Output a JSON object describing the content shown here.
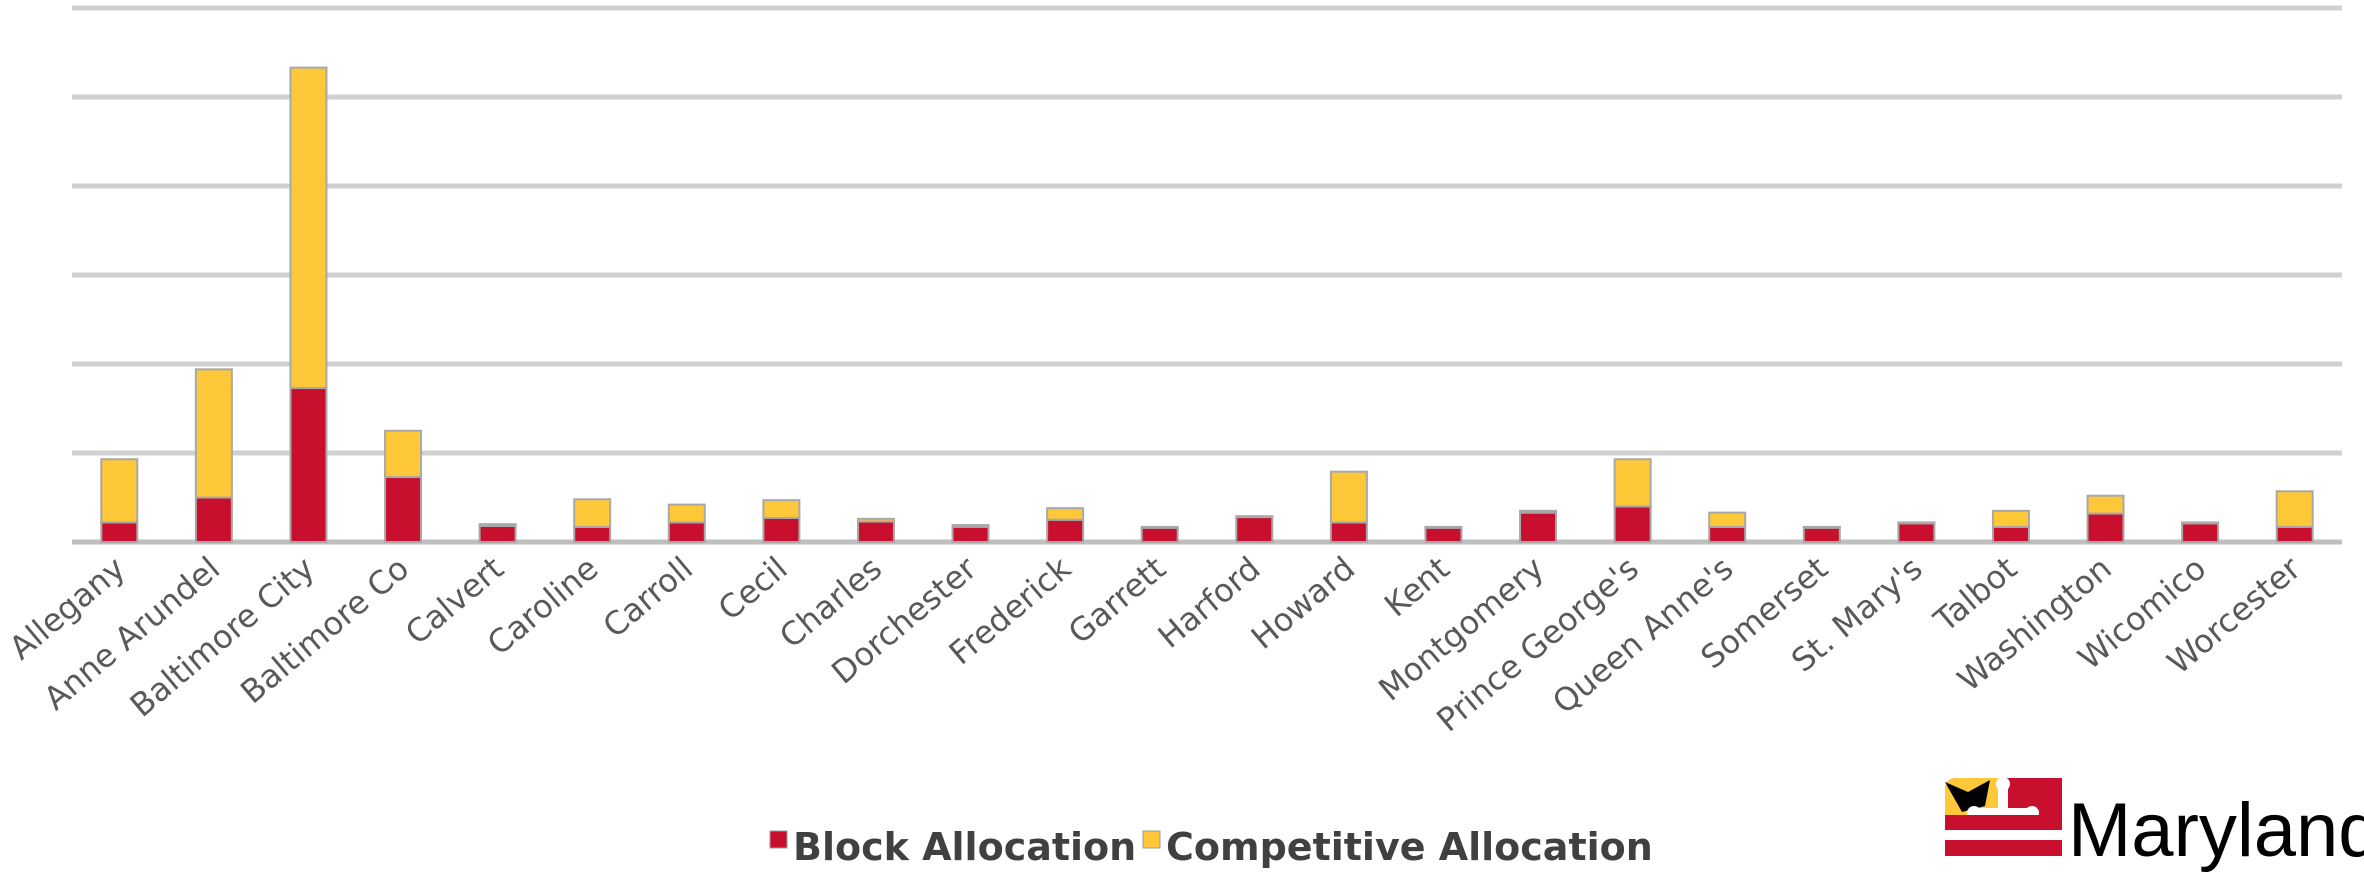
{
  "chart_data": {
    "type": "bar",
    "stacked": true,
    "categories": [
      "Allegany",
      "Anne Arundel",
      "Baltimore City",
      "Baltimore Co",
      "Calvert",
      "Caroline",
      "Carroll",
      "Cecil",
      "Charles",
      "Dorchester",
      "Frederick",
      "Garrett",
      "Harford",
      "Howard",
      "Kent",
      "Montgomery",
      "Prince George's",
      "Queen Anne's",
      "Somerset",
      "St. Mary's",
      "Talbot",
      "Washington",
      "Wicomico",
      "Worcester"
    ],
    "series": [
      {
        "name": "Block Allocation",
        "color": "#c8102e",
        "values": [
          0.22,
          0.5,
          1.73,
          0.73,
          0.18,
          0.17,
          0.22,
          0.27,
          0.23,
          0.17,
          0.25,
          0.16,
          0.28,
          0.22,
          0.16,
          0.33,
          0.4,
          0.17,
          0.16,
          0.21,
          0.17,
          0.32,
          0.21,
          0.17
        ]
      },
      {
        "name": "Competitive Allocation",
        "color": "#ffc838",
        "values": [
          0.71,
          1.44,
          3.6,
          0.52,
          0.02,
          0.31,
          0.2,
          0.2,
          0.03,
          0.02,
          0.13,
          0.01,
          0.01,
          0.57,
          0.01,
          0.02,
          0.53,
          0.16,
          0.01,
          0.01,
          0.18,
          0.2,
          0.01,
          0.4
        ]
      }
    ],
    "ylim": [
      0,
      6
    ],
    "yticks": [
      0,
      1,
      2,
      3,
      4,
      5,
      6
    ],
    "grid": true,
    "legend": "bottom"
  },
  "logo": {
    "text": "Maryland"
  }
}
